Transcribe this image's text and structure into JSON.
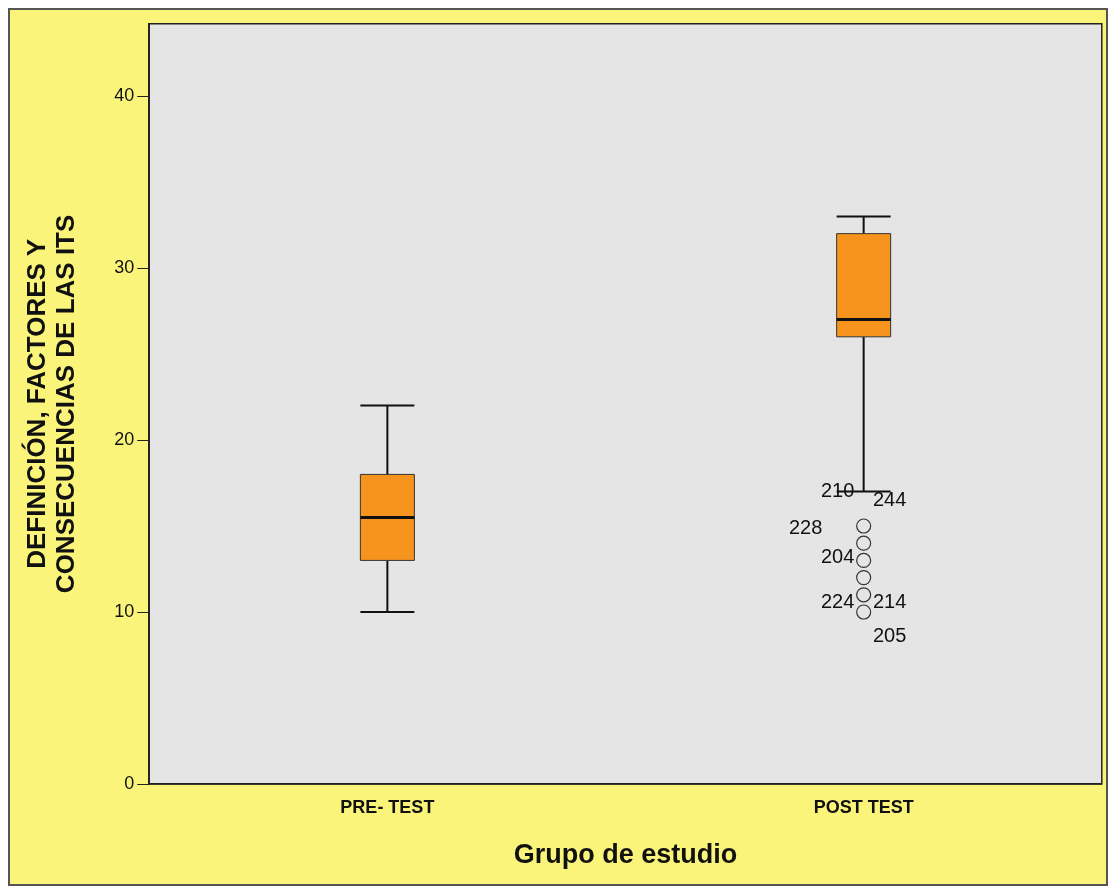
{
  "chart_data": {
    "type": "box",
    "xlabel": "Grupo de estudio",
    "ylabel": "DEFINICIÓN, FACTORES Y\nCONSECUENCIAS DE LAS ITS",
    "categories": [
      "PRE- TEST",
      "POST TEST"
    ],
    "color": "#f7941d",
    "boxes": [
      {
        "low": 10,
        "q1": 13,
        "median": 15.5,
        "q3": 18,
        "high": 22
      },
      {
        "low": 17,
        "q1": 26,
        "median": 27,
        "q3": 32,
        "high": 33,
        "outliers": [
          15,
          14,
          13,
          12,
          11,
          10
        ]
      }
    ],
    "ylim": [
      0,
      44.2
    ],
    "yticks": [
      0,
      10,
      20,
      30,
      40
    ],
    "grid": false,
    "legend": false,
    "annotations": [
      "210",
      "244",
      "228",
      "204",
      "224",
      "214",
      "205"
    ]
  }
}
